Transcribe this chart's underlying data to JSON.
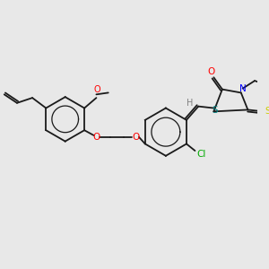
{
  "background_color": "#e8e8e8",
  "figsize": [
    3.0,
    3.0
  ],
  "dpi": 100,
  "colors": {
    "C": "#1a1a1a",
    "O": "#ff0000",
    "N": "#0000ff",
    "S_yellow": "#cccc00",
    "S_teal": "#008080",
    "Cl": "#00aa00",
    "H": "#808080"
  },
  "lw": 1.3
}
